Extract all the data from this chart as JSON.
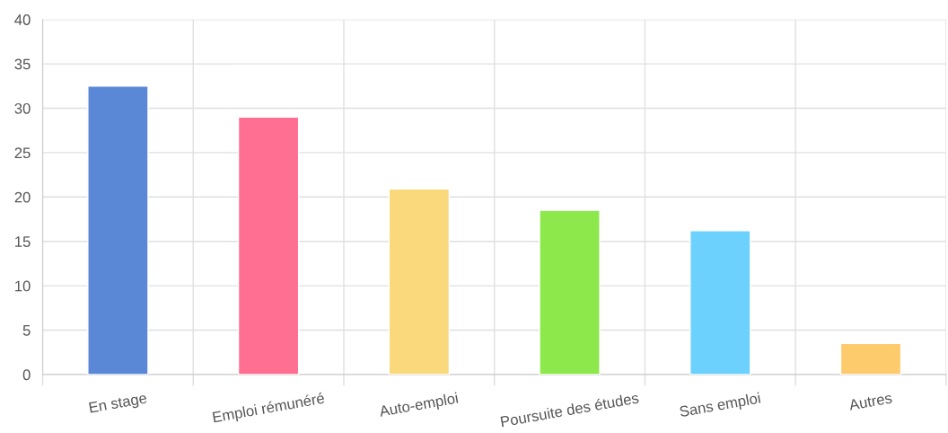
{
  "chart_data": {
    "type": "bar",
    "categories": [
      "En stage",
      "Emploi rémunéré",
      "Auto-emploi",
      "Poursuite des études",
      "Sans emploi",
      "Autres"
    ],
    "values": [
      32.5,
      29.0,
      20.9,
      18.5,
      16.2,
      3.5
    ],
    "colors": [
      "#5b88d6",
      "#ff6f91",
      "#fad97c",
      "#8de84b",
      "#6dd1fd",
      "#fecb6c"
    ],
    "ylim": [
      0,
      40
    ],
    "yticks": [
      0,
      5,
      10,
      15,
      20,
      25,
      30,
      35,
      40
    ],
    "grid": true,
    "legend": false
  }
}
